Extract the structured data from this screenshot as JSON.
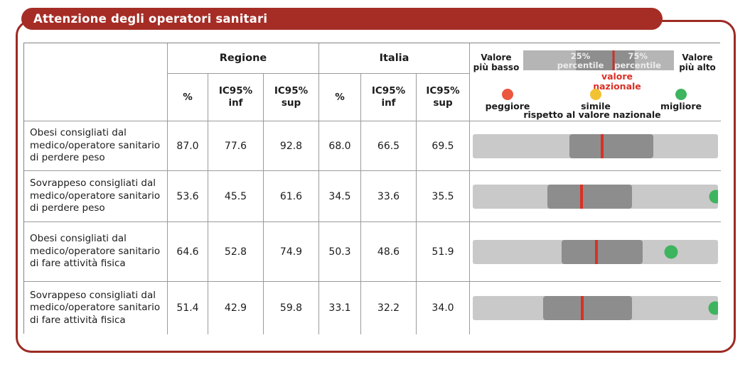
{
  "title_bar": {
    "title": "Attenzione degli operatori sanitari"
  },
  "table": {
    "group_headers": {
      "regione": "Regione",
      "italia": "Italia"
    },
    "sub_headers": {
      "pct": "%",
      "inf": "IC95%\ninf",
      "sup": "IC95%\nsup"
    },
    "rows": [
      {
        "label": "Obesi consigliati dal medico/operatore sanitario di perdere peso",
        "regione": {
          "pct": "87.0",
          "inf": "77.6",
          "sup": "92.8"
        },
        "italia": {
          "pct": "68.0",
          "inf": "66.5",
          "sup": "69.5"
        }
      },
      {
        "label": "Sovrappeso consigliati dal medico/operatore sanitario di perdere peso",
        "regione": {
          "pct": "53.6",
          "inf": "45.5",
          "sup": "61.6"
        },
        "italia": {
          "pct": "34.5",
          "inf": "33.6",
          "sup": "35.5"
        }
      },
      {
        "label": "Obesi consigliati dal medico/operatore sanitario di fare attività fisica",
        "regione": {
          "pct": "64.6",
          "inf": "52.8",
          "sup": "74.9"
        },
        "italia": {
          "pct": "50.3",
          "inf": "48.6",
          "sup": "51.9"
        }
      },
      {
        "label": "Sovrappeso consigliati dal medico/operatore sanitario di fare attività fisica",
        "regione": {
          "pct": "51.4",
          "inf": "42.9",
          "sup": "59.8"
        },
        "italia": {
          "pct": "33.1",
          "inf": "32.2",
          "sup": "34.0"
        }
      }
    ]
  },
  "legend": {
    "left_label": "Valore\npiù basso",
    "right_label": "Valore\npiù alto",
    "p25_label": "25%\npercentile",
    "p75_label": "75%\npercentile",
    "national_label": "valore\nnazionale",
    "dot_labels": [
      "peggiore",
      "simile",
      "migliore"
    ],
    "dots_caption": "rispetto al valore nazionale"
  },
  "colors": {
    "frame_red": "#9c2b23",
    "title_bg_red": "#a52d26",
    "title_text": "#ffffff",
    "national_red": "#da3025",
    "dot_worse": "#ec5740",
    "dot_similar": "#f2c233",
    "dot_better": "#3eb45f",
    "bar_light_gray": "#c9c9c9",
    "bar_dark_gray": "#8d8d8d",
    "legend_light_gray": "#b5b5b5",
    "legend_dark_gray": "#8e8e8e",
    "table_border": "#848484",
    "text": "#1c1c1c"
  },
  "chart_data": {
    "type": "table",
    "title": "Attenzione degli operatori sanitari",
    "columns": [
      "Regione %",
      "Regione IC95% inf",
      "Regione IC95% sup",
      "Italia %",
      "Italia IC95% inf",
      "Italia IC95% sup"
    ],
    "rows": [
      {
        "label": "Obesi consigliati dal medico/operatore sanitario di perdere peso",
        "regione_pct": 87.0,
        "regione_ic95": [
          77.6,
          92.8
        ],
        "italia_pct": 68.0,
        "italia_ic95": [
          66.5,
          69.5
        ],
        "bar": {
          "band_pct": [
            39.5,
            73.5
          ],
          "national_line_pct": 52.8,
          "dot": null
        }
      },
      {
        "label": "Sovrappeso consigliati dal medico/operatore sanitario di perdere peso",
        "regione_pct": 53.6,
        "regione_ic95": [
          45.5,
          61.6
        ],
        "italia_pct": 34.5,
        "italia_ic95": [
          33.6,
          35.5
        ],
        "bar": {
          "band_pct": [
            30.5,
            65.0
          ],
          "national_line_pct": 44.3,
          "dot": {
            "color_key": "dot_better",
            "pos_pct": 99.2
          }
        }
      },
      {
        "label": "Obesi consigliati dal medico/operatore sanitario di fare attività fisica",
        "regione_pct": 64.6,
        "regione_ic95": [
          52.8,
          74.9
        ],
        "italia_pct": 50.3,
        "italia_ic95": [
          48.6,
          51.9
        ],
        "bar": {
          "band_pct": [
            36.3,
            69.3
          ],
          "national_line_pct": 50.3,
          "dot": {
            "color_key": "dot_better",
            "pos_pct": 81.0
          }
        }
      },
      {
        "label": "Sovrappeso consigliati dal medico/operatore sanitario di fare attività fisica",
        "regione_pct": 51.4,
        "regione_ic95": [
          42.9,
          59.8
        ],
        "italia_pct": 33.1,
        "italia_ic95": [
          32.2,
          34.0
        ],
        "bar": {
          "band_pct": [
            28.7,
            64.9
          ],
          "national_line_pct": 44.5,
          "dot": {
            "color_key": "dot_better",
            "pos_pct": 98.8
          }
        }
      }
    ],
    "legend_bar": {
      "band_pct": [
        35,
        74
      ],
      "national_line_pct": 60
    },
    "layout": {
      "band_meaning": "25th-75th percentile range across regions",
      "line_meaning": "national value",
      "dot_meaning": "region position vs national value"
    }
  }
}
